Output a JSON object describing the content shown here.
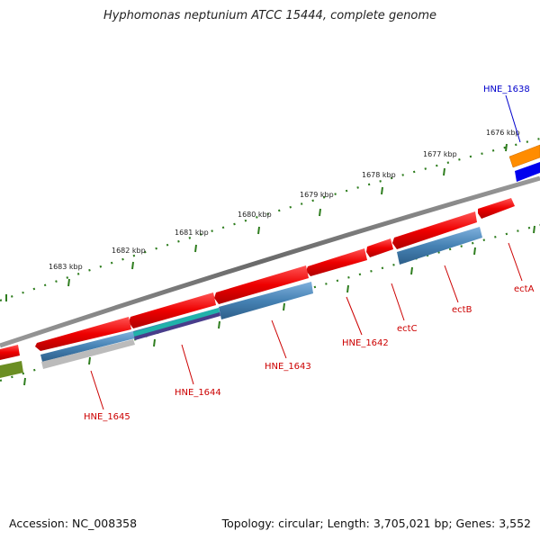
{
  "title": "Hyphomonas neptunium ATCC 15444, complete genome",
  "footer": {
    "accession": "Accession: NC_008358",
    "summary": "Topology: circular; Length: 3,705,021 bp; Genes: 3,552"
  },
  "ticks": [
    {
      "label": "1676 kbp"
    },
    {
      "label": "1677 kbp"
    },
    {
      "label": "1678 kbp"
    },
    {
      "label": "1679 kbp"
    },
    {
      "label": "1680 kbp"
    },
    {
      "label": "1681 kbp"
    },
    {
      "label": "1682 kbp"
    },
    {
      "label": "1683 kbp"
    }
  ],
  "genes": [
    {
      "label": "HNE_1638",
      "color": "#0000cc"
    },
    {
      "label": "ectA",
      "color": "#cc0000"
    },
    {
      "label": "ectB",
      "color": "#cc0000"
    },
    {
      "label": "ectC",
      "color": "#cc0000"
    },
    {
      "label": "HNE_1642",
      "color": "#cc0000"
    },
    {
      "label": "HNE_1643",
      "color": "#cc0000"
    },
    {
      "label": "HNE_1644",
      "color": "#cc0000"
    },
    {
      "label": "HNE_1645",
      "color": "#cc0000"
    }
  ],
  "colors": {
    "backbone": "#777777",
    "tick": "#2e7d1e",
    "cds": "#ee1111",
    "feature": "#4682b4",
    "orange": "#ff8c00",
    "blue": "#0000ee",
    "olive": "#6b8e23",
    "teal": "#20b2aa",
    "purple": "#483d8b",
    "grey": "#bbbbbb"
  }
}
